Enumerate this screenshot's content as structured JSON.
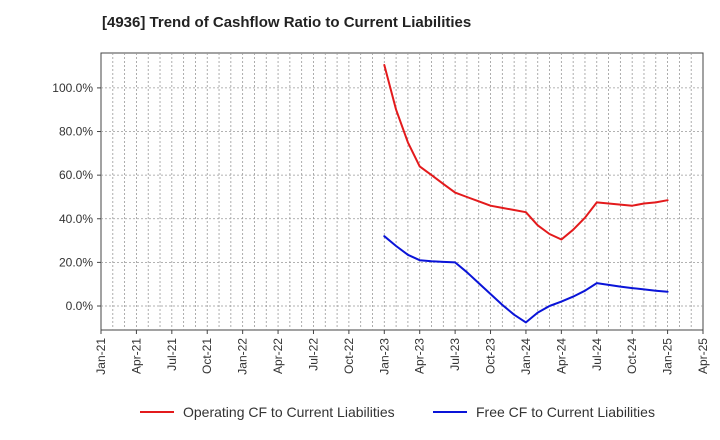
{
  "chart_data": {
    "type": "line",
    "title": "[4936]  Trend of Cashflow Ratio to Current Liabilities",
    "xlabel": "",
    "ylabel": "",
    "x_tick_labels": [
      "Jan-21",
      "Apr-21",
      "Jul-21",
      "Oct-21",
      "Jan-22",
      "Apr-22",
      "Jul-22",
      "Oct-22",
      "Jan-23",
      "Apr-23",
      "Jul-23",
      "Oct-23",
      "Jan-24",
      "Apr-24",
      "Jul-24",
      "Oct-24",
      "Jan-25",
      "Apr-25"
    ],
    "y_tick_labels": [
      "0.0%",
      "20.0%",
      "40.0%",
      "60.0%",
      "80.0%",
      "100.0%"
    ],
    "ylim": [
      -11,
      116
    ],
    "grid": true,
    "legend_position": "bottom",
    "series": [
      {
        "name": "Operating CF to Current Liabilities",
        "color": "#e31a1c",
        "x": [
          "Jan-23",
          "Feb-23",
          "Mar-23",
          "Apr-23",
          "May-23",
          "Jun-23",
          "Jul-23",
          "Aug-23",
          "Sep-23",
          "Oct-23",
          "Nov-23",
          "Dec-23",
          "Jan-24",
          "Feb-24",
          "Mar-24",
          "Apr-24",
          "May-24",
          "Jun-24",
          "Jul-24",
          "Aug-24",
          "Sep-24",
          "Oct-24",
          "Nov-24",
          "Dec-24",
          "Jan-25"
        ],
        "values": [
          110.5,
          90,
          75,
          64,
          60,
          56,
          52,
          50,
          48,
          46,
          45,
          44,
          43,
          37,
          33,
          30.5,
          35,
          40.5,
          47.5,
          47,
          46.5,
          46,
          47,
          47.5,
          48.5
        ]
      },
      {
        "name": "Free CF to Current Liabilities",
        "color": "#0a14d8",
        "x": [
          "Jan-23",
          "Feb-23",
          "Mar-23",
          "Apr-23",
          "May-23",
          "Jun-23",
          "Jul-23",
          "Aug-23",
          "Sep-23",
          "Oct-23",
          "Nov-23",
          "Dec-23",
          "Jan-24",
          "Feb-24",
          "Mar-24",
          "Apr-24",
          "May-24",
          "Jun-24",
          "Jul-24",
          "Aug-24",
          "Sep-24",
          "Oct-24",
          "Nov-24",
          "Dec-24",
          "Jan-25"
        ],
        "values": [
          32,
          27.5,
          23.5,
          21,
          20.5,
          20.2,
          20,
          15.5,
          10.5,
          5.5,
          0.5,
          -4,
          -7.5,
          -3,
          0,
          2,
          4.3,
          7,
          10.5,
          9.7,
          8.9,
          8.2,
          7.6,
          7,
          6.5
        ]
      }
    ]
  }
}
